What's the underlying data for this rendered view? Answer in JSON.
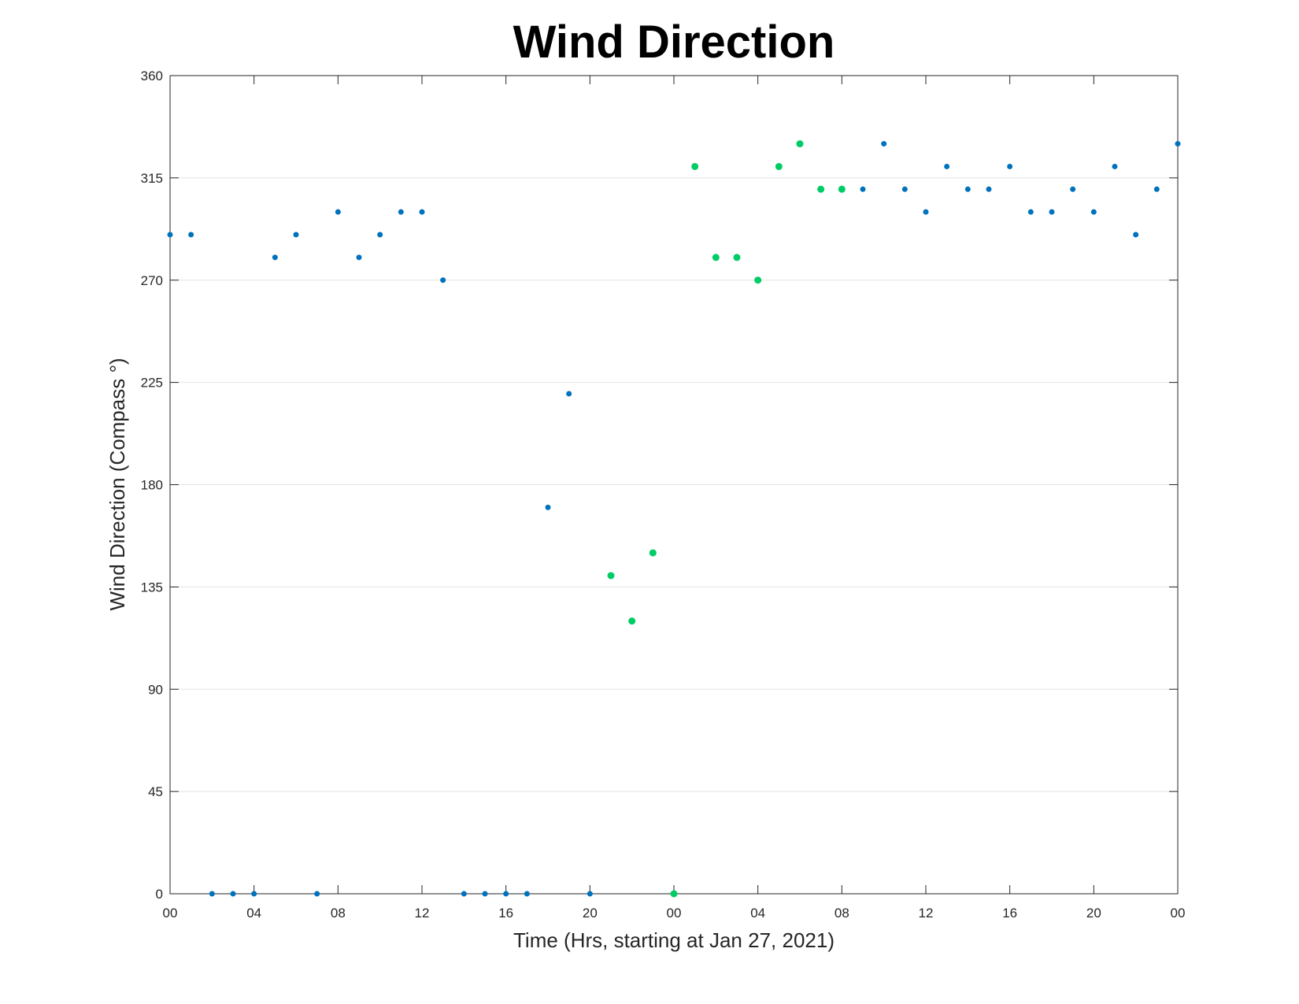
{
  "chart_data": {
    "type": "scatter",
    "title": "Wind Direction",
    "xlabel": "Time (Hrs, starting at Jan 27, 2021)",
    "ylabel": "Wind Direction (Compass °)",
    "xlim": [
      0,
      48
    ],
    "ylim": [
      0,
      360
    ],
    "grid": "horizontal",
    "x_ticks": [
      {
        "value": 0,
        "label": "00"
      },
      {
        "value": 4,
        "label": "04"
      },
      {
        "value": 8,
        "label": "08"
      },
      {
        "value": 12,
        "label": "12"
      },
      {
        "value": 16,
        "label": "16"
      },
      {
        "value": 20,
        "label": "20"
      },
      {
        "value": 24,
        "label": "00"
      },
      {
        "value": 28,
        "label": "04"
      },
      {
        "value": 32,
        "label": "08"
      },
      {
        "value": 36,
        "label": "12"
      },
      {
        "value": 40,
        "label": "16"
      },
      {
        "value": 44,
        "label": "20"
      },
      {
        "value": 48,
        "label": "00"
      }
    ],
    "y_ticks": [
      0,
      45,
      90,
      135,
      180,
      225,
      270,
      315,
      360
    ],
    "series": [
      {
        "color": "#0072BD",
        "points": [
          [
            0,
            290
          ],
          [
            1,
            290
          ],
          [
            2,
            0
          ],
          [
            3,
            0
          ],
          [
            4,
            0
          ],
          [
            5,
            280
          ],
          [
            6,
            290
          ],
          [
            7,
            0
          ],
          [
            8,
            300
          ],
          [
            9,
            280
          ],
          [
            10,
            290
          ],
          [
            11,
            300
          ],
          [
            12,
            300
          ],
          [
            13,
            270
          ],
          [
            14,
            0
          ],
          [
            15,
            0
          ],
          [
            16,
            0
          ],
          [
            17,
            0
          ],
          [
            18,
            170
          ],
          [
            19,
            220
          ],
          [
            20,
            0
          ],
          [
            33,
            310
          ],
          [
            34,
            330
          ],
          [
            35,
            310
          ],
          [
            36,
            300
          ],
          [
            37,
            320
          ],
          [
            38,
            310
          ],
          [
            39,
            310
          ],
          [
            40,
            320
          ],
          [
            41,
            300
          ],
          [
            42,
            300
          ],
          [
            43,
            310
          ],
          [
            44,
            300
          ],
          [
            45,
            320
          ],
          [
            46,
            290
          ],
          [
            47,
            310
          ],
          [
            48,
            330
          ]
        ]
      },
      {
        "color": "#00CC66",
        "points": [
          [
            21,
            140
          ],
          [
            22,
            120
          ],
          [
            23,
            150
          ],
          [
            24,
            0
          ],
          [
            25,
            320
          ],
          [
            26,
            280
          ],
          [
            27,
            280
          ],
          [
            28,
            270
          ],
          [
            29,
            320
          ],
          [
            30,
            330
          ],
          [
            31,
            310
          ],
          [
            32,
            310
          ]
        ]
      }
    ]
  }
}
